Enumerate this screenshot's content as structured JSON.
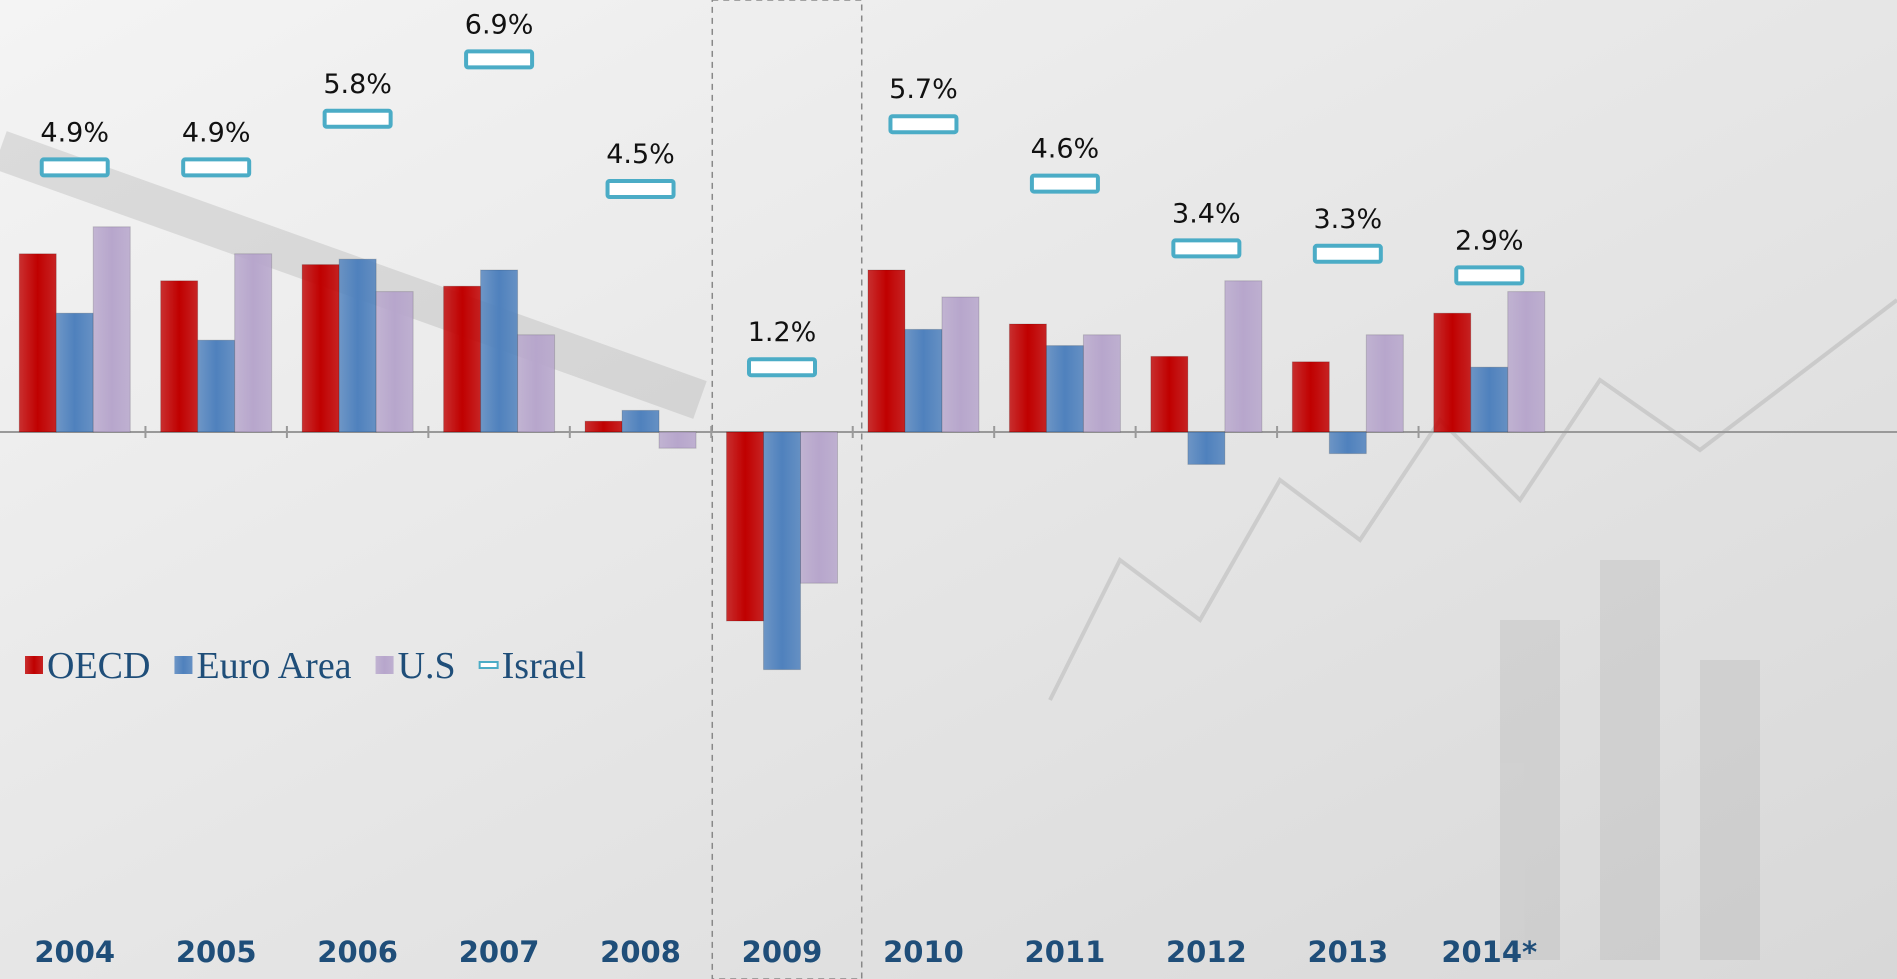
{
  "chart_data": {
    "type": "bar",
    "categories": [
      "2004",
      "2005",
      "2006",
      "2007",
      "2008",
      "2009",
      "2010",
      "2011",
      "2012",
      "2013",
      "2014*"
    ],
    "series": [
      {
        "name": "OECD",
        "color": "#c00000",
        "values": [
          3.3,
          2.8,
          3.1,
          2.7,
          0.2,
          -3.5,
          3.0,
          2.0,
          1.4,
          1.3,
          2.2
        ]
      },
      {
        "name": "Euro Area",
        "color": "#4f81bd",
        "values": [
          2.2,
          1.7,
          3.2,
          3.0,
          0.4,
          -4.4,
          1.9,
          1.6,
          -0.6,
          -0.4,
          1.2
        ]
      },
      {
        "name": "U.S",
        "color": "#b7a6cc",
        "values": [
          3.8,
          3.3,
          2.6,
          1.8,
          -0.3,
          -2.8,
          2.5,
          1.8,
          2.8,
          1.8,
          2.6
        ]
      },
      {
        "name": "Israel",
        "color": "#4bacc6",
        "type": "marker",
        "values": [
          4.9,
          4.9,
          5.8,
          6.9,
          4.5,
          1.2,
          5.7,
          4.6,
          3.4,
          3.3,
          2.9
        ],
        "value_labels": [
          "4.9%",
          "4.9%",
          "5.8%",
          "6.9%",
          "4.5%",
          "1.2%",
          "5.7%",
          "4.6%",
          "3.4%",
          "3.3%",
          "2.9%"
        ]
      }
    ],
    "ylim": [
      -5,
      8
    ],
    "highlight_category": "2009",
    "legend": "lower left"
  }
}
